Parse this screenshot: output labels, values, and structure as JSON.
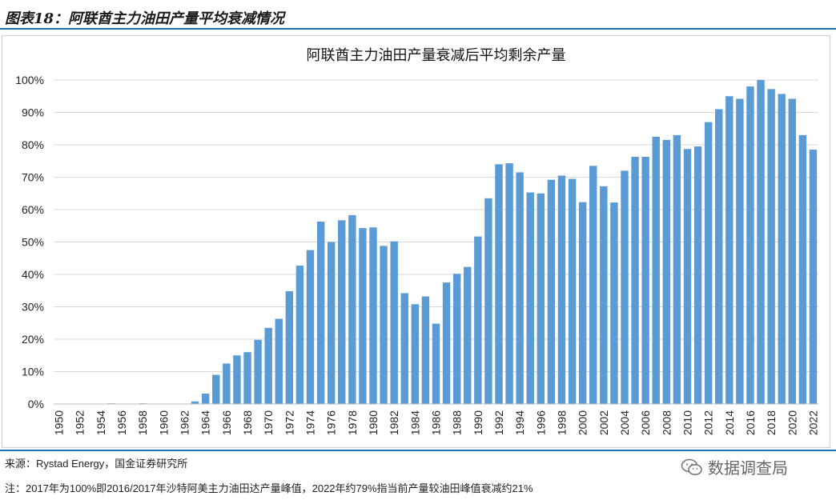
{
  "figure_label": "图表18：阿联酋主力油田产量平均衰减情况",
  "source_text": "来源：Rystad Energy，国金证券研究所",
  "note_text": "注：2017年为100%即2016/2017年沙特阿美主力油田达产量峰值，2022年约79%指当前产量较油田峰值衰减约21%",
  "watermark_text": "数据调查局",
  "colors": {
    "bar": "#5b9bd5",
    "accent": "#1f6fb8"
  },
  "chart_data": {
    "type": "bar",
    "title": "阿联酋主力油田产量衰减后平均剩余产量",
    "xlabel": "",
    "ylabel": "",
    "ylim": [
      0,
      100
    ],
    "yticks": [
      "0%",
      "10%",
      "20%",
      "30%",
      "40%",
      "50%",
      "60%",
      "70%",
      "80%",
      "90%",
      "100%"
    ],
    "x_tick_labels": [
      "1950",
      "1952",
      "1954",
      "1956",
      "1958",
      "1960",
      "1962",
      "1964",
      "1966",
      "1968",
      "1970",
      "1972",
      "1974",
      "1976",
      "1978",
      "1980",
      "1982",
      "1984",
      "1986",
      "1988",
      "1990",
      "1992",
      "1994",
      "1996",
      "1998",
      "2000",
      "2002",
      "2004",
      "2006",
      "2008",
      "2010",
      "2012",
      "2014",
      "2016",
      "2018",
      "2020",
      "2022"
    ],
    "grid": true,
    "categories": [
      1950,
      1951,
      1952,
      1953,
      1954,
      1955,
      1956,
      1957,
      1958,
      1959,
      1960,
      1961,
      1962,
      1963,
      1964,
      1965,
      1966,
      1967,
      1968,
      1969,
      1970,
      1971,
      1972,
      1973,
      1974,
      1975,
      1976,
      1977,
      1978,
      1979,
      1980,
      1981,
      1982,
      1983,
      1984,
      1985,
      1986,
      1987,
      1988,
      1989,
      1990,
      1991,
      1992,
      1993,
      1994,
      1995,
      1996,
      1997,
      1998,
      1999,
      2000,
      2001,
      2002,
      2003,
      2004,
      2005,
      2006,
      2007,
      2008,
      2009,
      2010,
      2011,
      2012,
      2013,
      2014,
      2015,
      2016,
      2017,
      2018,
      2019,
      2020,
      2021,
      2022
    ],
    "values": [
      0,
      0,
      0,
      0,
      0,
      0.2,
      0,
      0,
      0.2,
      0,
      0,
      0,
      0,
      0.8,
      3.2,
      9,
      12.5,
      15,
      16,
      19.8,
      23.5,
      26.3,
      34.8,
      42.7,
      47.5,
      56.3,
      50,
      56.7,
      58.3,
      54.3,
      54.5,
      48.8,
      50.2,
      34.2,
      30.8,
      33.2,
      24.8,
      37.5,
      40.2,
      42.3,
      51.7,
      63.5,
      74,
      74.3,
      71.5,
      65.3,
      65,
      69.2,
      70.5,
      69.5,
      62.3,
      73.5,
      67.2,
      62.2,
      72,
      76.3,
      76.3,
      82.5,
      81.5,
      83,
      78.7,
      79.5,
      87,
      91,
      95,
      94.2,
      98,
      100,
      97.2,
      95.7,
      94.2,
      83,
      78.5
    ]
  }
}
